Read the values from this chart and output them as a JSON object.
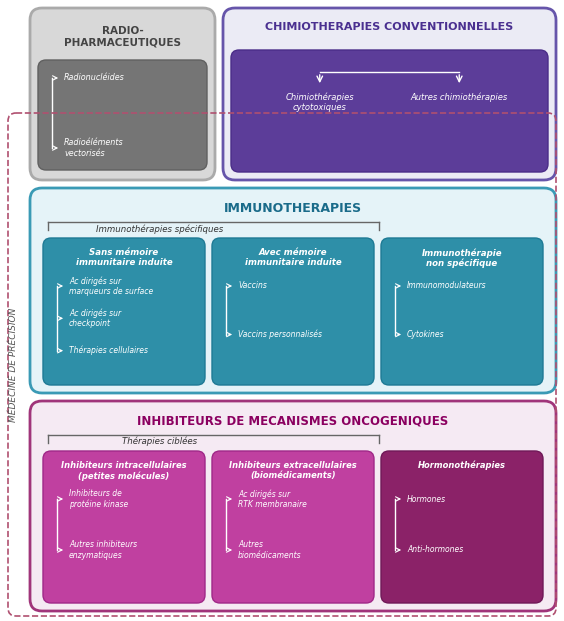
{
  "bg_color": "#ffffff",
  "radio": {
    "title": "RADIO-\nPHARMACEUTIQUES",
    "items": [
      "Radionucléides",
      "Radioéléments\nvectorisés"
    ],
    "outer_fc": "#d8d8d8",
    "outer_ec": "#aaaaaa",
    "inner_fc": "#777777",
    "inner_ec": "#666666",
    "title_color": "#444444",
    "item_color": "#ffffff"
  },
  "chimio": {
    "title": "CHIMIOTHERAPIES CONVENTIONNELLES",
    "items": [
      "CHIMIOTHÉRAPIES\nCYTOTOXIQUES",
      "AUTRES CHIMIOTHÉRAPIES"
    ],
    "outer_fc": "#ebebf5",
    "outer_ec": "#6655aa",
    "inner_fc": "#5c3d99",
    "inner_ec": "#4a2d88",
    "title_color": "#4a3090",
    "item_color": "#ffffff"
  },
  "immuno": {
    "title": "IMMUNOTHERAPIES",
    "subtitle": "Immunothérapies spécifiques",
    "outer_fc": "#e5f3f8",
    "outer_ec": "#3a9ab5",
    "inner_fc": "#2e8fa8",
    "inner_ec": "#1e7a95",
    "title_color": "#1a6b8a",
    "subs": [
      {
        "title": "Sans mémoire\nimmunitaire induite",
        "items": [
          "Ac dirigés sur\nmarqueurs de surface",
          "Ac dirigés sur\ncheckpoint",
          "Thérapies cellulaires"
        ]
      },
      {
        "title": "Avec mémoire\nimmunitaire induite",
        "items": [
          "Vaccins",
          "Vaccins personnalisés"
        ]
      },
      {
        "title": "Immunothérapie\nnon spécifique",
        "items": [
          "Immunomodulateurs",
          "Cytokines"
        ]
      }
    ]
  },
  "inhibit": {
    "title": "INHIBITEURS DE MECANISMES ONCOGENIQUES",
    "subtitle": "Thérapies ciblées",
    "outer_fc": "#f5eaf3",
    "outer_ec": "#a0357a",
    "title_color": "#8B0060",
    "subs": [
      {
        "title": "Inhibiteurs intracellulaires\n(petites molécules)",
        "inner_fc": "#c040a0",
        "inner_ec": "#a02888",
        "items": [
          "Inhibiteurs de\nprotéine kinase",
          "Autres inhibiteurs\nenzymatiques"
        ]
      },
      {
        "title": "Inhibiteurs extracellulaires\n(biomédicaments)",
        "inner_fc": "#c040a0",
        "inner_ec": "#a02888",
        "items": [
          "Ac dirigés sur\nRTK membranaire",
          "Autres\nbiomédicaments"
        ]
      },
      {
        "title": "Hormonothérapies",
        "inner_fc": "#8B2268",
        "inner_ec": "#701858",
        "items": [
          "Hormones",
          "Anti-hormones"
        ]
      }
    ]
  },
  "precision_label": "MÉDECINE DE PRÉCISION",
  "dashed_color": "#b05070"
}
